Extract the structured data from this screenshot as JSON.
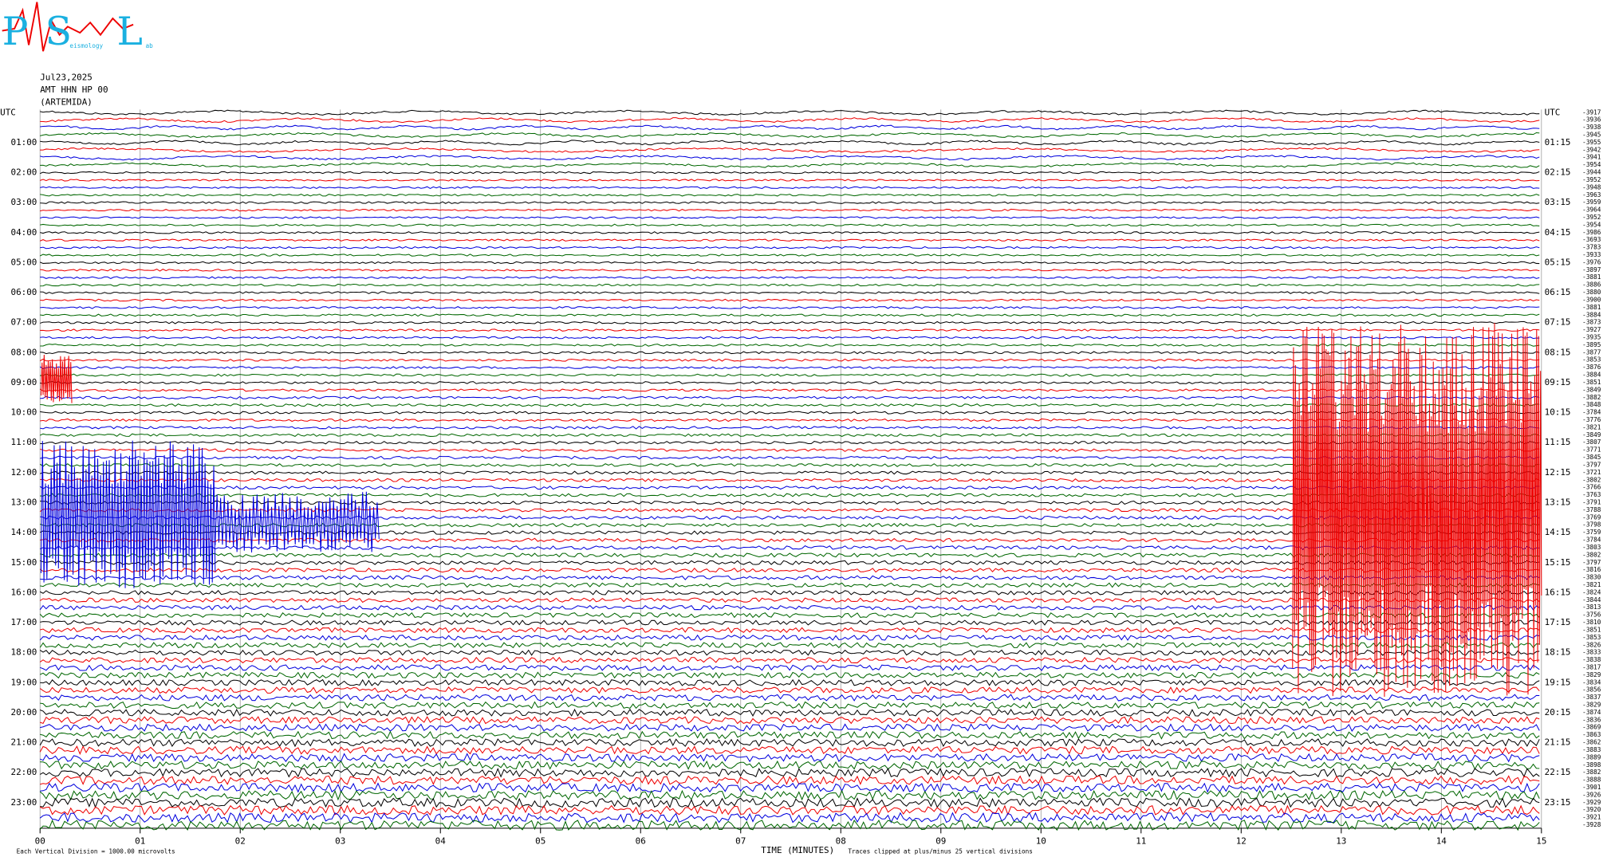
{
  "logo": {
    "letters": [
      "P",
      "S",
      "L"
    ],
    "small": [
      "eismology",
      "ab"
    ]
  },
  "header": [
    "Jul23,2025",
    "AMT HHN HP 00",
    "(ARTEMIDA)"
  ],
  "left_labels": [
    "UTC",
    "01:00",
    "02:00",
    "03:00",
    "04:00",
    "05:00",
    "06:00",
    "07:00",
    "08:00",
    "09:00",
    "10:00",
    "11:00",
    "12:00",
    "13:00",
    "14:00",
    "15:00",
    "16:00",
    "17:00",
    "18:00",
    "19:00",
    "20:00",
    "21:00",
    "22:00",
    "23:00"
  ],
  "right_labels": [
    "UTC",
    "01:15",
    "02:15",
    "03:15",
    "04:15",
    "05:15",
    "06:15",
    "07:15",
    "08:15",
    "09:15",
    "10:15",
    "11:15",
    "12:15",
    "13:15",
    "14:15",
    "15:15",
    "16:15",
    "17:15",
    "18:15",
    "19:15",
    "20:15",
    "21:15",
    "22:15",
    "23:15"
  ],
  "offsets": [
    "-3917",
    "-3936",
    "-3938",
    "-3945",
    "-3955",
    "-3942",
    "-3941",
    "-3954",
    "-3944",
    "-3952",
    "-3948",
    "-3963",
    "-3959",
    "-3964",
    "-3952",
    "-3954",
    "-3986",
    "-3693",
    "-3783",
    "-3933",
    "-3976",
    "-3897",
    "-3881",
    "-3886",
    "-3880",
    "-3900",
    "-3881",
    "-3884",
    "-3873",
    "-3927",
    "-3935",
    "-3895",
    "-3877",
    "-3853",
    "-3876",
    "-3884",
    "-3851",
    "-3849",
    "-3882",
    "-3848",
    "-3784",
    "-3776",
    "-3821",
    "-3849",
    "-3807",
    "-3771",
    "-3845",
    "-3797",
    "-3721",
    "-3802",
    "-3766",
    "-3763",
    "-3791",
    "-3788",
    "-3769",
    "-3798",
    "-3759",
    "-3784",
    "-3803",
    "-3802",
    "-3797",
    "-3816",
    "-3830",
    "-3821",
    "-3824",
    "-3844",
    "-3813",
    "-3756",
    "-3810",
    "-3851",
    "-3853",
    "-3826",
    "-3833",
    "-3838",
    "-3817",
    "-3829",
    "-3834",
    "-3856",
    "-3837",
    "-3829",
    "-3874",
    "-3836",
    "-3869",
    "-3863",
    "-3862",
    "-3883",
    "-3889",
    "-3898",
    "-3882",
    "-3888",
    "-3901",
    "-3926",
    "-3929",
    "-3920",
    "-3921",
    "-3928"
  ],
  "x_ticks": [
    "00",
    "01",
    "02",
    "03",
    "04",
    "05",
    "06",
    "07",
    "08",
    "09",
    "10",
    "11",
    "12",
    "13",
    "14",
    "15"
  ],
  "footer": {
    "scale": "Each Vertical Division = 1000.00 microvolts",
    "axis_title": "TIME (MINUTES)",
    "clip_note": "Traces clipped at plus/minus 25 vertical divisions"
  }
}
